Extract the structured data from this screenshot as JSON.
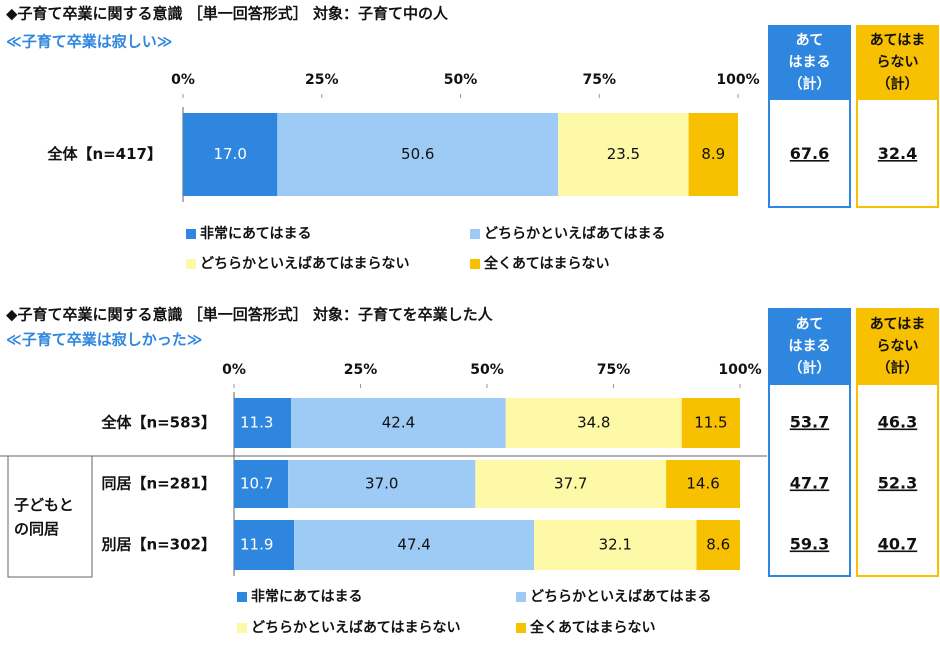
{
  "chart_data": [
    {
      "type": "stacked-bar",
      "title": "◆子育て卒業に関する意識 ［単一回答形式］ 対象：子育て中の人",
      "subtitle": "≪子育て卒業は寂しい≫",
      "categories": [
        "全体【n=417】"
      ],
      "xlim": [
        0,
        100
      ],
      "xticks": [
        {
          "value": 0,
          "label": "0%"
        },
        {
          "value": 25,
          "label": "25%"
        },
        {
          "value": 50,
          "label": "50%"
        },
        {
          "value": 75,
          "label": "75%"
        },
        {
          "value": 100,
          "label": "100%"
        }
      ],
      "series": [
        {
          "name": "非常にあてはまる",
          "color": "#2e86de",
          "values": [
            17.0
          ],
          "value_labels": [
            "17.0"
          ]
        },
        {
          "name": "どちらかといえばあてはまる",
          "color": "#9ecbf5",
          "values": [
            50.6
          ],
          "value_labels": [
            "50.6"
          ]
        },
        {
          "name": "どちらかといえばあてはまらない",
          "color": "#fdf9a6",
          "values": [
            23.5
          ],
          "value_labels": [
            "23.5"
          ]
        },
        {
          "name": "全くあてはまらない",
          "color": "#f7c000",
          "values": [
            8.9
          ],
          "value_labels": [
            "8.9"
          ]
        }
      ],
      "summary": [
        {
          "header": [
            "あて",
            "はまる",
            "（計）"
          ],
          "color": "#2e86de",
          "values": [
            67.6
          ]
        },
        {
          "header": [
            "あてはま",
            "らない",
            "（計）"
          ],
          "color": "#f7c000",
          "values": [
            32.4
          ]
        }
      ]
    },
    {
      "type": "stacked-bar",
      "title": "◆子育て卒業に関する意識 ［単一回答形式］ 対象：子育てを卒業した人",
      "subtitle": "≪子育て卒業は寂しかった≫",
      "categories": [
        "全体【n=583】",
        "同居【n=281】",
        "別居【n=302】"
      ],
      "group_label": [
        "子どもと",
        "の同居"
      ],
      "xlim": [
        0,
        100
      ],
      "xticks": [
        {
          "value": 0,
          "label": "0%"
        },
        {
          "value": 25,
          "label": "25%"
        },
        {
          "value": 50,
          "label": "50%"
        },
        {
          "value": 75,
          "label": "75%"
        },
        {
          "value": 100,
          "label": "100%"
        }
      ],
      "series": [
        {
          "name": "非常にあてはまる",
          "color": "#2e86de",
          "values": [
            11.3,
            10.7,
            11.9
          ],
          "value_labels": [
            "11.3",
            "10.7",
            "11.9"
          ]
        },
        {
          "name": "どちらかといえばあてはまる",
          "color": "#9ecbf5",
          "values": [
            42.4,
            37.0,
            47.4
          ],
          "value_labels": [
            "42.4",
            "37.0",
            "47.4"
          ]
        },
        {
          "name": "どちらかといえばあてはまらない",
          "color": "#fdf9a6",
          "values": [
            34.8,
            37.7,
            32.1
          ],
          "value_labels": [
            "34.8",
            "37.7",
            "32.1"
          ]
        },
        {
          "name": "全くあてはまらない",
          "color": "#f7c000",
          "values": [
            11.5,
            14.6,
            8.6
          ],
          "value_labels": [
            "11.5",
            "14.6",
            "8.6"
          ]
        }
      ],
      "summary": [
        {
          "header": [
            "あて",
            "はまる",
            "（計）"
          ],
          "color": "#2e86de",
          "values": [
            53.7,
            47.7,
            59.3
          ]
        },
        {
          "header": [
            "あてはま",
            "らない",
            "（計）"
          ],
          "color": "#f7c000",
          "values": [
            46.3,
            52.3,
            40.7
          ]
        }
      ]
    }
  ]
}
